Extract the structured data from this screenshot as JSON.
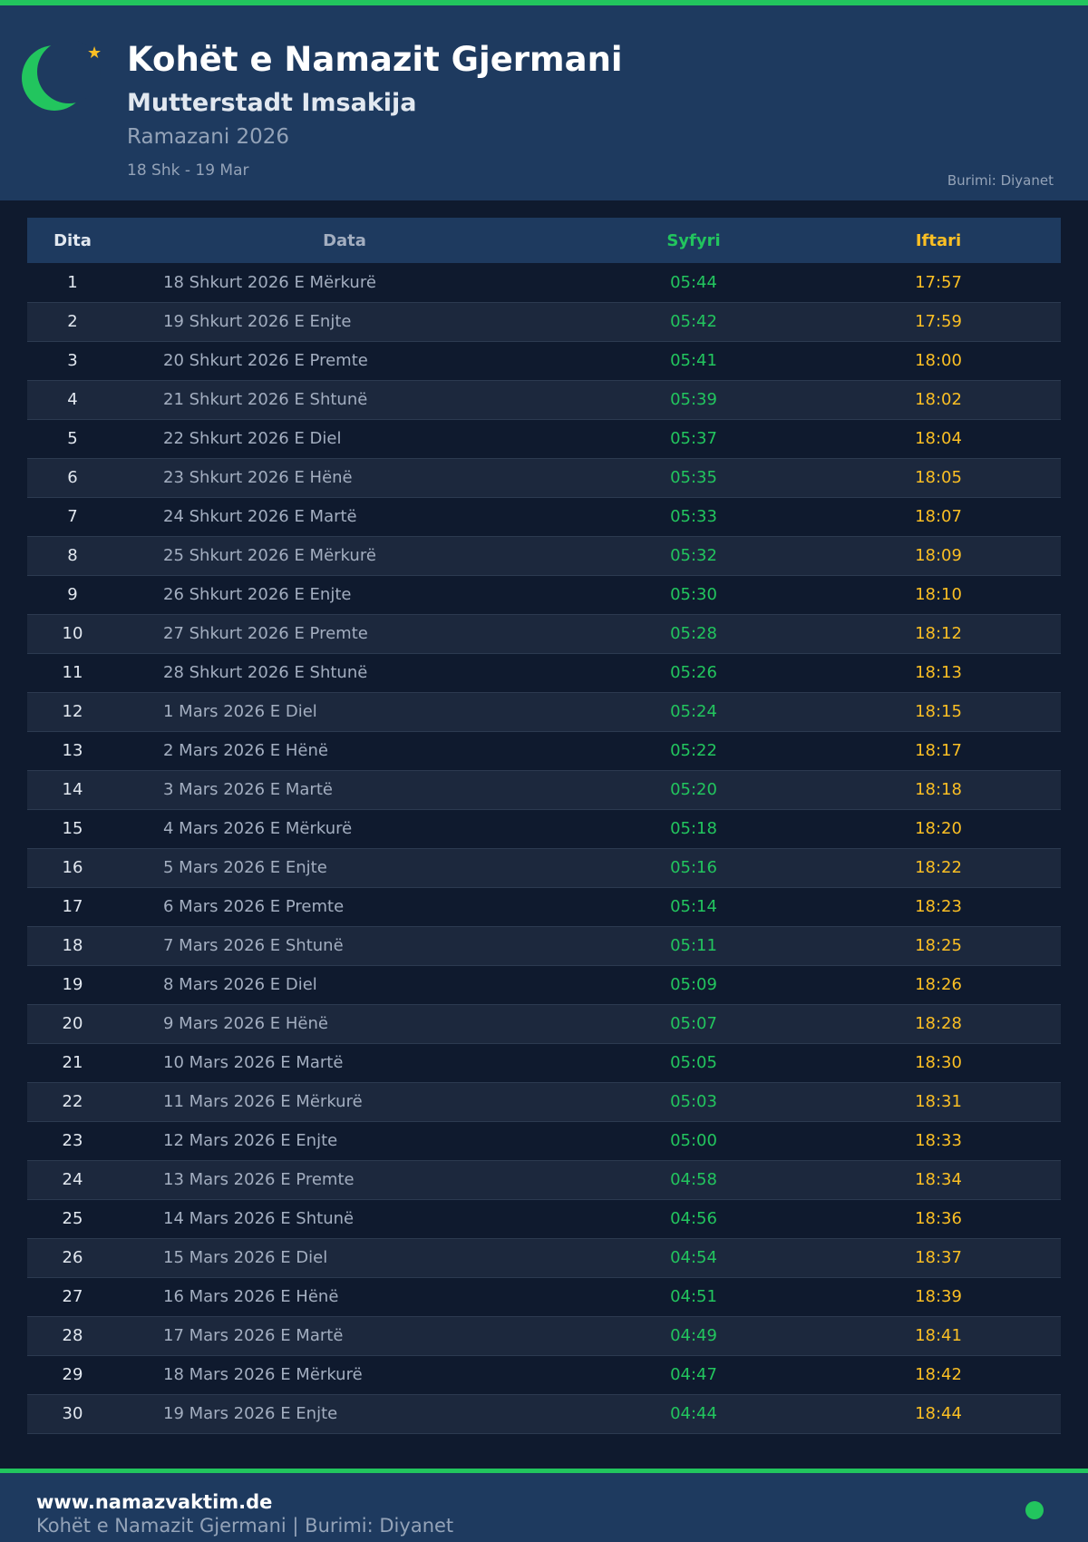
{
  "header": {
    "title": "Kohët e Namazit Gjermani",
    "subtitle": "Mutterstadt Imsakija",
    "period": "Ramazani 2026",
    "range": "18 Shk - 19 Mar",
    "source": "Burimi: Diyanet"
  },
  "colors": {
    "accent": "#22c55e",
    "iftar": "#fbbf24",
    "header_bg": "#1e3a5f",
    "page_bg": "#0f1a2e"
  },
  "table": {
    "columns": [
      "Dita",
      "Data",
      "Syfyri",
      "Iftari"
    ],
    "rows": [
      [
        "1",
        "18 Shkurt 2026 E Mërkurë",
        "05:44",
        "17:57"
      ],
      [
        "2",
        "19 Shkurt 2026 E Enjte",
        "05:42",
        "17:59"
      ],
      [
        "3",
        "20 Shkurt 2026 E Premte",
        "05:41",
        "18:00"
      ],
      [
        "4",
        "21 Shkurt 2026 E Shtunë",
        "05:39",
        "18:02"
      ],
      [
        "5",
        "22 Shkurt 2026 E Diel",
        "05:37",
        "18:04"
      ],
      [
        "6",
        "23 Shkurt 2026 E Hënë",
        "05:35",
        "18:05"
      ],
      [
        "7",
        "24 Shkurt 2026 E Martë",
        "05:33",
        "18:07"
      ],
      [
        "8",
        "25 Shkurt 2026 E Mërkurë",
        "05:32",
        "18:09"
      ],
      [
        "9",
        "26 Shkurt 2026 E Enjte",
        "05:30",
        "18:10"
      ],
      [
        "10",
        "27 Shkurt 2026 E Premte",
        "05:28",
        "18:12"
      ],
      [
        "11",
        "28 Shkurt 2026 E Shtunë",
        "05:26",
        "18:13"
      ],
      [
        "12",
        "1 Mars 2026 E Diel",
        "05:24",
        "18:15"
      ],
      [
        "13",
        "2 Mars 2026 E Hënë",
        "05:22",
        "18:17"
      ],
      [
        "14",
        "3 Mars 2026 E Martë",
        "05:20",
        "18:18"
      ],
      [
        "15",
        "4 Mars 2026 E Mërkurë",
        "05:18",
        "18:20"
      ],
      [
        "16",
        "5 Mars 2026 E Enjte",
        "05:16",
        "18:22"
      ],
      [
        "17",
        "6 Mars 2026 E Premte",
        "05:14",
        "18:23"
      ],
      [
        "18",
        "7 Mars 2026 E Shtunë",
        "05:11",
        "18:25"
      ],
      [
        "19",
        "8 Mars 2026 E Diel",
        "05:09",
        "18:26"
      ],
      [
        "20",
        "9 Mars 2026 E Hënë",
        "05:07",
        "18:28"
      ],
      [
        "21",
        "10 Mars 2026 E Martë",
        "05:05",
        "18:30"
      ],
      [
        "22",
        "11 Mars 2026 E Mërkurë",
        "05:03",
        "18:31"
      ],
      [
        "23",
        "12 Mars 2026 E Enjte",
        "05:00",
        "18:33"
      ],
      [
        "24",
        "13 Mars 2026 E Premte",
        "04:58",
        "18:34"
      ],
      [
        "25",
        "14 Mars 2026 E Shtunë",
        "04:56",
        "18:36"
      ],
      [
        "26",
        "15 Mars 2026 E Diel",
        "04:54",
        "18:37"
      ],
      [
        "27",
        "16 Mars 2026 E Hënë",
        "04:51",
        "18:39"
      ],
      [
        "28",
        "17 Mars 2026 E Martë",
        "04:49",
        "18:41"
      ],
      [
        "29",
        "18 Mars 2026 E Mërkurë",
        "04:47",
        "18:42"
      ],
      [
        "30",
        "19 Mars 2026 E Enjte",
        "04:44",
        "18:44"
      ]
    ]
  },
  "footer": {
    "site": "www.namazvaktim.de",
    "text": "Kohët e Namazit Gjermani | Burimi: Diyanet"
  }
}
